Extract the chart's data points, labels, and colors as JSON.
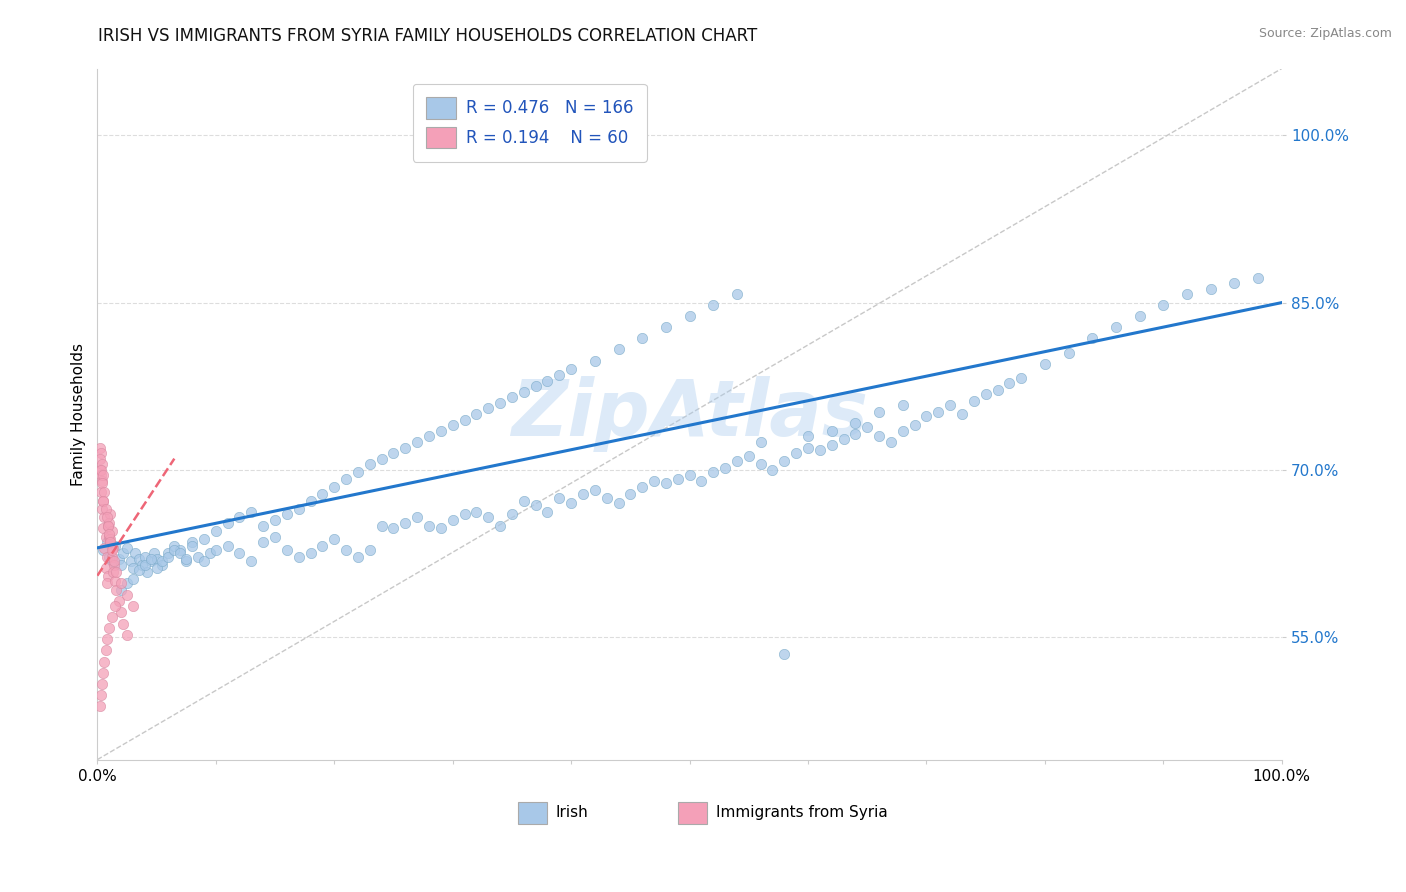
{
  "title": "IRISH VS IMMIGRANTS FROM SYRIA FAMILY HOUSEHOLDS CORRELATION CHART",
  "source_text": "Source: ZipAtlas.com",
  "ylabel": "Family Households",
  "xlim": [
    0.0,
    1.0
  ],
  "ylim": [
    0.44,
    1.06
  ],
  "yticks": [
    0.55,
    0.7,
    0.85,
    1.0
  ],
  "ytick_labels": [
    "55.0%",
    "70.0%",
    "85.0%",
    "100.0%"
  ],
  "xtick_positions": [
    0.0,
    0.1,
    0.2,
    0.3,
    0.4,
    0.5,
    0.6,
    0.7,
    0.8,
    0.9,
    1.0
  ],
  "xtick_labels_sparse": [
    "0.0%",
    "",
    "",
    "",
    "",
    "",
    "",
    "",
    "",
    "",
    "100.0%"
  ],
  "irish_R": 0.476,
  "irish_N": 166,
  "syria_R": 0.194,
  "syria_N": 60,
  "irish_color": "#A8C8E8",
  "syria_color": "#F4A0B8",
  "irish_trend_color": "#2277CC",
  "syria_trend_color": "#EE6677",
  "ireland_trend_x": [
    0.0,
    1.0
  ],
  "ireland_trend_y": [
    0.63,
    0.85
  ],
  "syria_trend_x": [
    0.0,
    0.065
  ],
  "syria_trend_y": [
    0.605,
    0.71
  ],
  "ref_line_x": [
    0.0,
    1.0
  ],
  "ref_line_y": [
    0.44,
    1.06
  ],
  "watermark_text": "ZipAtlas",
  "watermark_color": "#AACCEE",
  "background_color": "#FFFFFF",
  "title_fontsize": 12,
  "axis_label_fontsize": 11,
  "tick_fontsize": 11,
  "legend_fontsize": 12,
  "scatter_size": 55,
  "scatter_alpha": 0.75,
  "irish_x": [
    0.005,
    0.008,
    0.01,
    0.012,
    0.015,
    0.018,
    0.02,
    0.022,
    0.025,
    0.028,
    0.03,
    0.032,
    0.035,
    0.038,
    0.04,
    0.042,
    0.045,
    0.048,
    0.05,
    0.055,
    0.06,
    0.065,
    0.07,
    0.075,
    0.08,
    0.085,
    0.09,
    0.095,
    0.1,
    0.11,
    0.12,
    0.13,
    0.14,
    0.15,
    0.16,
    0.17,
    0.18,
    0.19,
    0.2,
    0.21,
    0.22,
    0.23,
    0.24,
    0.25,
    0.26,
    0.27,
    0.28,
    0.29,
    0.3,
    0.31,
    0.32,
    0.33,
    0.34,
    0.35,
    0.36,
    0.37,
    0.38,
    0.39,
    0.4,
    0.41,
    0.42,
    0.43,
    0.44,
    0.45,
    0.46,
    0.47,
    0.48,
    0.49,
    0.5,
    0.51,
    0.52,
    0.53,
    0.54,
    0.55,
    0.56,
    0.57,
    0.58,
    0.59,
    0.6,
    0.61,
    0.62,
    0.63,
    0.64,
    0.65,
    0.66,
    0.67,
    0.68,
    0.69,
    0.7,
    0.71,
    0.72,
    0.73,
    0.74,
    0.75,
    0.76,
    0.77,
    0.78,
    0.8,
    0.82,
    0.84,
    0.86,
    0.88,
    0.9,
    0.92,
    0.94,
    0.96,
    0.98,
    0.02,
    0.025,
    0.03,
    0.035,
    0.04,
    0.045,
    0.05,
    0.055,
    0.06,
    0.065,
    0.07,
    0.075,
    0.08,
    0.09,
    0.1,
    0.11,
    0.12,
    0.13,
    0.14,
    0.15,
    0.16,
    0.17,
    0.18,
    0.19,
    0.2,
    0.21,
    0.22,
    0.23,
    0.24,
    0.25,
    0.26,
    0.27,
    0.28,
    0.29,
    0.3,
    0.31,
    0.32,
    0.33,
    0.34,
    0.35,
    0.36,
    0.37,
    0.38,
    0.39,
    0.4,
    0.42,
    0.44,
    0.46,
    0.48,
    0.5,
    0.52,
    0.54,
    0.56,
    0.58,
    0.6,
    0.62,
    0.64,
    0.66,
    0.68
  ],
  "irish_y": [
    0.628,
    0.635,
    0.622,
    0.618,
    0.632,
    0.62,
    0.615,
    0.625,
    0.63,
    0.618,
    0.612,
    0.625,
    0.62,
    0.615,
    0.622,
    0.608,
    0.618,
    0.625,
    0.62,
    0.615,
    0.625,
    0.632,
    0.628,
    0.618,
    0.635,
    0.622,
    0.618,
    0.625,
    0.628,
    0.632,
    0.625,
    0.618,
    0.635,
    0.64,
    0.628,
    0.622,
    0.625,
    0.632,
    0.638,
    0.628,
    0.622,
    0.628,
    0.65,
    0.648,
    0.652,
    0.658,
    0.65,
    0.648,
    0.655,
    0.66,
    0.662,
    0.658,
    0.65,
    0.66,
    0.672,
    0.668,
    0.662,
    0.675,
    0.67,
    0.678,
    0.682,
    0.675,
    0.67,
    0.678,
    0.685,
    0.69,
    0.688,
    0.692,
    0.695,
    0.69,
    0.698,
    0.702,
    0.708,
    0.712,
    0.705,
    0.7,
    0.708,
    0.715,
    0.72,
    0.718,
    0.722,
    0.728,
    0.732,
    0.738,
    0.73,
    0.725,
    0.735,
    0.74,
    0.748,
    0.752,
    0.758,
    0.75,
    0.762,
    0.768,
    0.772,
    0.778,
    0.782,
    0.795,
    0.805,
    0.818,
    0.828,
    0.838,
    0.848,
    0.858,
    0.862,
    0.868,
    0.872,
    0.592,
    0.598,
    0.602,
    0.61,
    0.615,
    0.62,
    0.612,
    0.618,
    0.622,
    0.628,
    0.625,
    0.62,
    0.632,
    0.638,
    0.645,
    0.652,
    0.658,
    0.662,
    0.65,
    0.655,
    0.66,
    0.665,
    0.672,
    0.678,
    0.685,
    0.692,
    0.698,
    0.705,
    0.71,
    0.715,
    0.72,
    0.725,
    0.73,
    0.735,
    0.74,
    0.745,
    0.75,
    0.755,
    0.76,
    0.765,
    0.77,
    0.775,
    0.78,
    0.785,
    0.79,
    0.798,
    0.808,
    0.818,
    0.828,
    0.838,
    0.848,
    0.858,
    0.725,
    0.535,
    0.73,
    0.735,
    0.742,
    0.752,
    0.758
  ],
  "syria_x": [
    0.002,
    0.003,
    0.004,
    0.003,
    0.005,
    0.004,
    0.006,
    0.005,
    0.007,
    0.006,
    0.008,
    0.007,
    0.009,
    0.008,
    0.01,
    0.009,
    0.011,
    0.01,
    0.012,
    0.011,
    0.013,
    0.012,
    0.014,
    0.013,
    0.015,
    0.016,
    0.018,
    0.02,
    0.022,
    0.025,
    0.002,
    0.003,
    0.002,
    0.004,
    0.003,
    0.005,
    0.004,
    0.006,
    0.005,
    0.007,
    0.008,
    0.009,
    0.01,
    0.011,
    0.012,
    0.014,
    0.016,
    0.02,
    0.025,
    0.03,
    0.002,
    0.003,
    0.004,
    0.005,
    0.006,
    0.007,
    0.008,
    0.01,
    0.012,
    0.015
  ],
  "syria_y": [
    0.7,
    0.695,
    0.69,
    0.68,
    0.672,
    0.665,
    0.658,
    0.648,
    0.64,
    0.63,
    0.622,
    0.612,
    0.605,
    0.598,
    0.64,
    0.65,
    0.66,
    0.652,
    0.645,
    0.638,
    0.63,
    0.622,
    0.615,
    0.608,
    0.6,
    0.592,
    0.582,
    0.572,
    0.562,
    0.552,
    0.72,
    0.715,
    0.71,
    0.705,
    0.7,
    0.695,
    0.688,
    0.68,
    0.672,
    0.665,
    0.658,
    0.65,
    0.642,
    0.635,
    0.628,
    0.618,
    0.608,
    0.598,
    0.588,
    0.578,
    0.488,
    0.498,
    0.508,
    0.518,
    0.528,
    0.538,
    0.548,
    0.558,
    0.568,
    0.578
  ]
}
